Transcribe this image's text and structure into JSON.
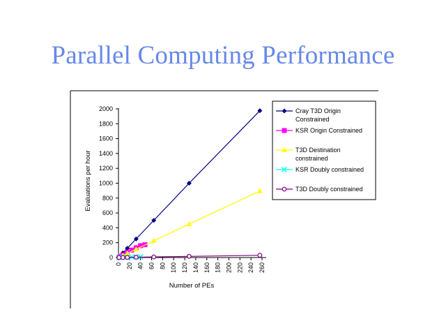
{
  "slide": {
    "title": "Parallel Computing Performance"
  },
  "chart_data": {
    "type": "line",
    "xlabel": "Number of PEs",
    "ylabel": "Evaluations per hour",
    "xlim": [
      0,
      260
    ],
    "ylim": [
      0,
      2000
    ],
    "x_ticks": [
      0,
      20,
      40,
      60,
      80,
      100,
      120,
      140,
      160,
      180,
      200,
      220,
      240,
      260
    ],
    "y_ticks": [
      0,
      200,
      400,
      600,
      800,
      1000,
      1200,
      1400,
      1600,
      1800,
      2000
    ],
    "grid": false,
    "legend_position": "right",
    "series": [
      {
        "name": [
          "Cray T3D Origin",
          "Constrained"
        ],
        "color": "#000080",
        "marker": "diamond",
        "x": [
          1,
          8,
          16,
          32,
          64,
          128,
          256
        ],
        "y": [
          8,
          62,
          125,
          250,
          500,
          1000,
          1975
        ]
      },
      {
        "name": [
          "KSR Origin Constrained"
        ],
        "color": "#ff00ff",
        "marker": "square",
        "x": [
          1,
          4,
          8,
          16,
          24,
          32,
          40,
          48
        ],
        "y": [
          4,
          17,
          34,
          68,
          100,
          132,
          160,
          172
        ]
      },
      {
        "name": [
          "T3D Destination",
          "constrained"
        ],
        "color": "#ffff00",
        "marker": "triangle",
        "x": [
          1,
          8,
          16,
          32,
          64,
          128,
          256
        ],
        "y": [
          4,
          28,
          56,
          112,
          225,
          450,
          895
        ]
      },
      {
        "name": [
          "KSR Doubly constrained"
        ],
        "color": "#00ffff",
        "marker": "x",
        "x": [
          1,
          4,
          8,
          16,
          24,
          32,
          40
        ],
        "y": [
          0,
          1,
          2,
          4,
          6,
          8,
          9
        ]
      },
      {
        "name": [
          "T3D Doubly constrained"
        ],
        "color": "#800080",
        "marker": "circle",
        "x": [
          1,
          8,
          16,
          32,
          64,
          128,
          256
        ],
        "y": [
          0,
          1,
          2,
          4,
          8,
          16,
          30
        ]
      }
    ]
  }
}
